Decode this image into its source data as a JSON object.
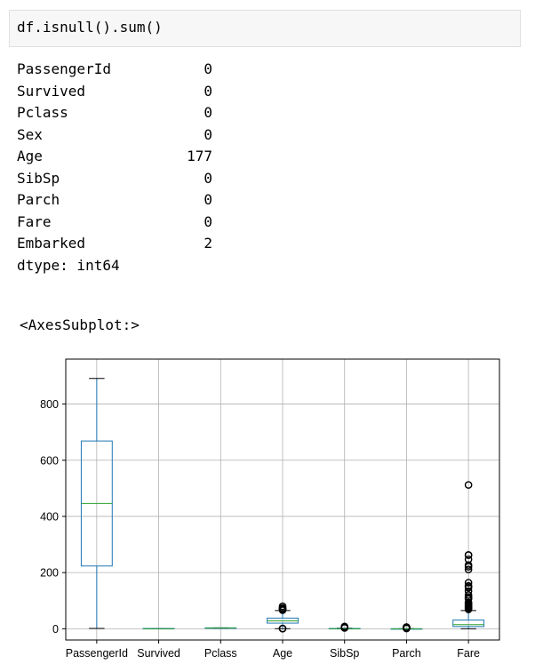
{
  "cell": {
    "code": "df.isnull().sum()"
  },
  "output": {
    "rows": [
      {
        "name": "PassengerId",
        "value": "0"
      },
      {
        "name": "Survived",
        "value": "0"
      },
      {
        "name": "Pclass",
        "value": "0"
      },
      {
        "name": "Sex",
        "value": "0"
      },
      {
        "name": "Age",
        "value": "177"
      },
      {
        "name": "SibSp",
        "value": "0"
      },
      {
        "name": "Parch",
        "value": "0"
      },
      {
        "name": "Fare",
        "value": "0"
      },
      {
        "name": "Embarked",
        "value": "2"
      }
    ],
    "dtype": "dtype: int64"
  },
  "repr": "<AxesSubplot:>",
  "chart_data": {
    "type": "box",
    "categories": [
      "PassengerId",
      "Survived",
      "Pclass",
      "Age",
      "SibSp",
      "Parch",
      "Fare"
    ],
    "ylim": [
      -40,
      960
    ],
    "yticks": [
      0,
      200,
      400,
      600,
      800
    ],
    "grid": true,
    "box_color": "#1f77b4",
    "median_color": "#2ca02c",
    "series": [
      {
        "q1": 223.5,
        "median": 446,
        "q3": 668.5,
        "whisker_low": 1,
        "whisker_high": 891,
        "outliers": []
      },
      {
        "q1": 0,
        "median": 0,
        "q3": 1,
        "whisker_low": 0,
        "whisker_high": 1,
        "outliers": []
      },
      {
        "q1": 2,
        "median": 3,
        "q3": 3,
        "whisker_low": 1,
        "whisker_high": 3,
        "outliers": []
      },
      {
        "q1": 20,
        "median": 28,
        "q3": 38,
        "whisker_low": 0.42,
        "whisker_high": 65,
        "outliers": [
          66,
          70,
          70.5,
          71,
          74,
          80,
          0.42,
          1
        ]
      },
      {
        "q1": 0,
        "median": 0,
        "q3": 1,
        "whisker_low": 0,
        "whisker_high": 2,
        "outliers": [
          3,
          4,
          5,
          8
        ]
      },
      {
        "q1": 0,
        "median": 0,
        "q3": 0,
        "whisker_low": 0,
        "whisker_high": 0,
        "outliers": [
          1,
          2,
          3,
          4,
          5,
          6
        ]
      },
      {
        "q1": 7.9,
        "median": 14.45,
        "q3": 31,
        "whisker_low": 0,
        "whisker_high": 65,
        "outliers": [
          69,
          73,
          76,
          78,
          80,
          83,
          86,
          90,
          93,
          106,
          110,
          113,
          120,
          134,
          146,
          151,
          153,
          164,
          211,
          221,
          227,
          247,
          262,
          263,
          512
        ]
      }
    ]
  }
}
